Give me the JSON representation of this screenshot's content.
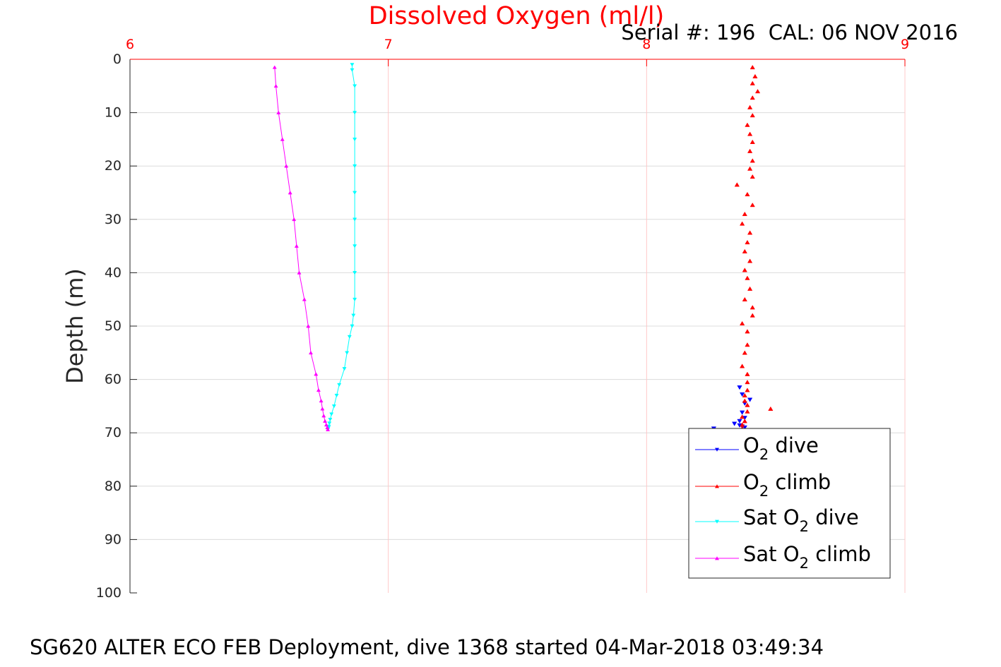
{
  "chart_data": {
    "type": "scatter",
    "title": "Dissolved Oxygen (ml/l)",
    "subtitle": "Serial #: 196  CAL: 06 NOV 2016",
    "caption": "SG620 ALTER ECO FEB Deployment, dive 1368 started 04-Mar-2018 03:49:34",
    "ylabel": "Depth (m)",
    "xlim": [
      6,
      9
    ],
    "ylim": [
      0,
      100
    ],
    "y_reversed": true,
    "x_axis_position": "top",
    "x_ticks": [
      "6",
      "7",
      "8",
      "9"
    ],
    "y_ticks": [
      "0",
      "10",
      "20",
      "30",
      "40",
      "50",
      "60",
      "70",
      "80",
      "90",
      "100"
    ],
    "grid": true,
    "legend_position": "bottom-right",
    "series": [
      {
        "label": {
          "pre": "O",
          "sub": "2",
          "post": " dive"
        },
        "color": "#0000ff",
        "marker": "triangle-down",
        "line": false,
        "x": [
          8.36,
          8.37,
          8.38,
          8.4,
          8.37,
          8.38,
          8.36,
          8.37,
          8.34,
          8.38,
          8.36,
          8.26
        ],
        "y": [
          61.5,
          62.8,
          64.5,
          63.8,
          66.2,
          67.2,
          67.8,
          68.8,
          68.3,
          69.0,
          68.6,
          69.2
        ]
      },
      {
        "label": {
          "pre": "O",
          "sub": "2",
          "post": " climb"
        },
        "color": "#ff0000",
        "marker": "triangle-up",
        "line": false,
        "x": [
          8.41,
          8.42,
          8.41,
          8.43,
          8.41,
          8.4,
          8.41,
          8.39,
          8.4,
          8.41,
          8.4,
          8.41,
          8.4,
          8.41,
          8.35,
          8.39,
          8.41,
          8.38,
          8.37,
          8.4,
          8.39,
          8.38,
          8.4,
          8.38,
          8.39,
          8.4,
          8.38,
          8.41,
          8.41,
          8.37,
          8.39,
          8.39,
          8.38,
          8.37,
          8.39,
          8.39,
          8.39,
          8.38,
          8.38,
          8.39,
          8.48,
          8.39,
          8.37,
          8.38,
          8.37,
          8.37
        ],
        "y": [
          1.5,
          3.2,
          4.5,
          6.0,
          7.2,
          9.0,
          10.5,
          12.3,
          14.0,
          15.5,
          17.2,
          19.0,
          20.5,
          22.0,
          23.5,
          25.3,
          27.3,
          29.0,
          30.8,
          32.5,
          34.3,
          36.0,
          37.8,
          39.5,
          41.0,
          43.0,
          45.0,
          46.5,
          48.0,
          49.5,
          51.0,
          53.5,
          55.0,
          57.5,
          59.0,
          60.5,
          62.0,
          63.0,
          64.0,
          64.8,
          65.5,
          66.0,
          67.0,
          67.8,
          68.5,
          69.2
        ]
      },
      {
        "label": {
          "pre": "Sat O",
          "sub": "2",
          "post": " dive"
        },
        "color": "#00ffff",
        "marker": "triangle-down",
        "line": true,
        "x": [
          6.86,
          6.86,
          6.87,
          6.87,
          6.87,
          6.87,
          6.87,
          6.87,
          6.87,
          6.87,
          6.87,
          6.865,
          6.86,
          6.85,
          6.84,
          6.83,
          6.81,
          6.8,
          6.79,
          6.78,
          6.775,
          6.772,
          6.77,
          6.768,
          6.766
        ],
        "y": [
          1,
          2,
          5,
          10,
          15,
          20,
          25,
          30,
          35,
          40,
          45,
          48,
          50,
          52,
          55,
          58,
          61,
          63,
          65,
          66.5,
          67.5,
          68.2,
          68.8,
          69.1,
          69.4
        ]
      },
      {
        "label": {
          "pre": "Sat O",
          "sub": "2",
          "post": " climb"
        },
        "color": "#ff00ff",
        "marker": "triangle-up",
        "line": true,
        "x": [
          6.56,
          6.565,
          6.575,
          6.59,
          6.605,
          6.62,
          6.635,
          6.645,
          6.655,
          6.675,
          6.69,
          6.7,
          6.72,
          6.73,
          6.74,
          6.745,
          6.75,
          6.755,
          6.76,
          6.764,
          6.766
        ],
        "y": [
          1.5,
          5,
          10,
          15,
          20,
          25,
          30,
          35,
          40,
          45,
          50,
          55,
          59,
          62,
          64,
          65.5,
          66.8,
          67.8,
          68.5,
          69.0,
          69.4
        ]
      }
    ]
  }
}
